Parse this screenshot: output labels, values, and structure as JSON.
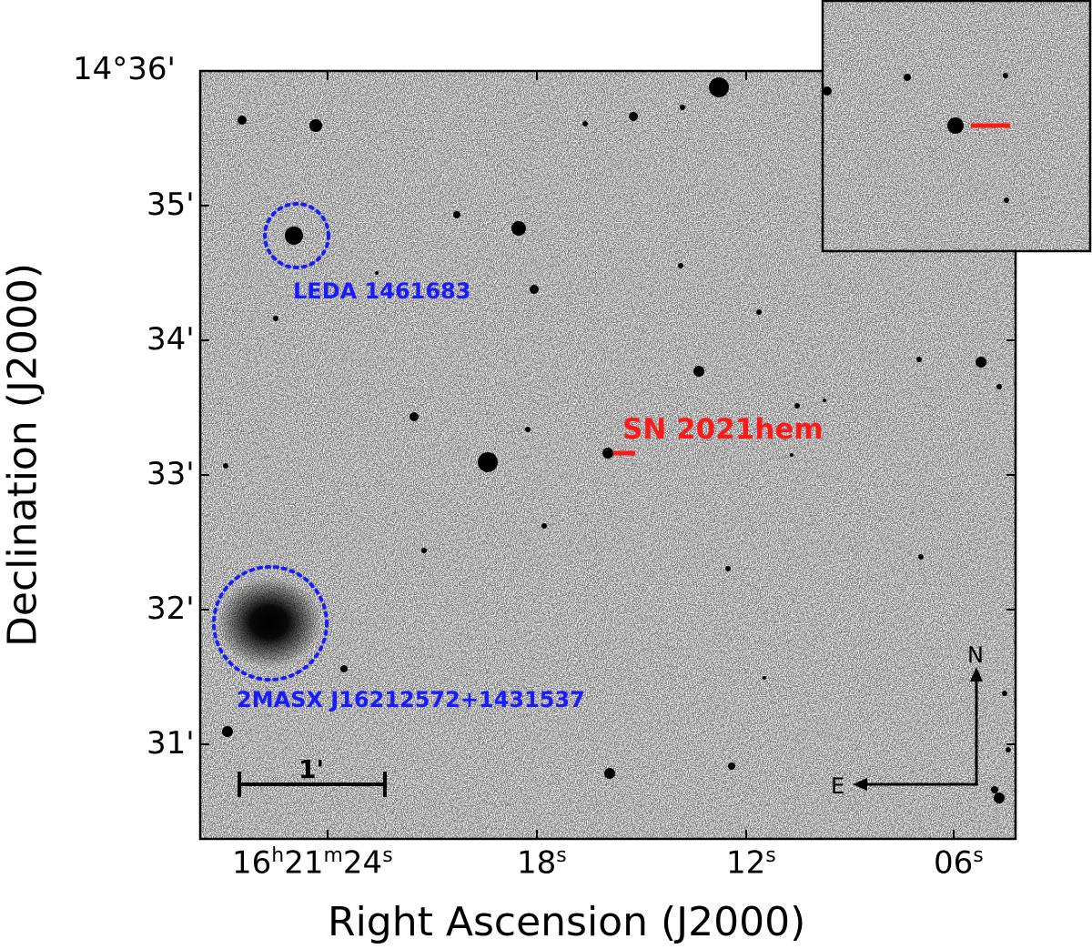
{
  "figure": {
    "title": "",
    "xlabel": "Right Ascension (J2000)",
    "ylabel": "Declination (J2000)",
    "x_ticks": [
      {
        "h": "16",
        "m": "21",
        "s": "24"
      },
      {
        "s": "18"
      },
      {
        "s": "12"
      },
      {
        "s": "06"
      }
    ],
    "y_ticks": [
      "14°36'",
      "35'",
      "34'",
      "33'",
      "32'",
      "31'"
    ]
  },
  "annotations": {
    "galaxy_1": "LEDA 1461683",
    "galaxy_2": "2MASX J16212572+1431537",
    "supernova": "SN 2021hem",
    "scale_bar": "1'",
    "compass_north": "N",
    "compass_east": "E"
  },
  "colors": {
    "supernova_marker": "#ff1a1a",
    "galaxy_circle": "#1a1aff",
    "background": "#ffffff",
    "stars": "#000000"
  },
  "icons": {
    "compass": "north-east-compass-icon",
    "scale_bar": "scale-bar-icon"
  }
}
